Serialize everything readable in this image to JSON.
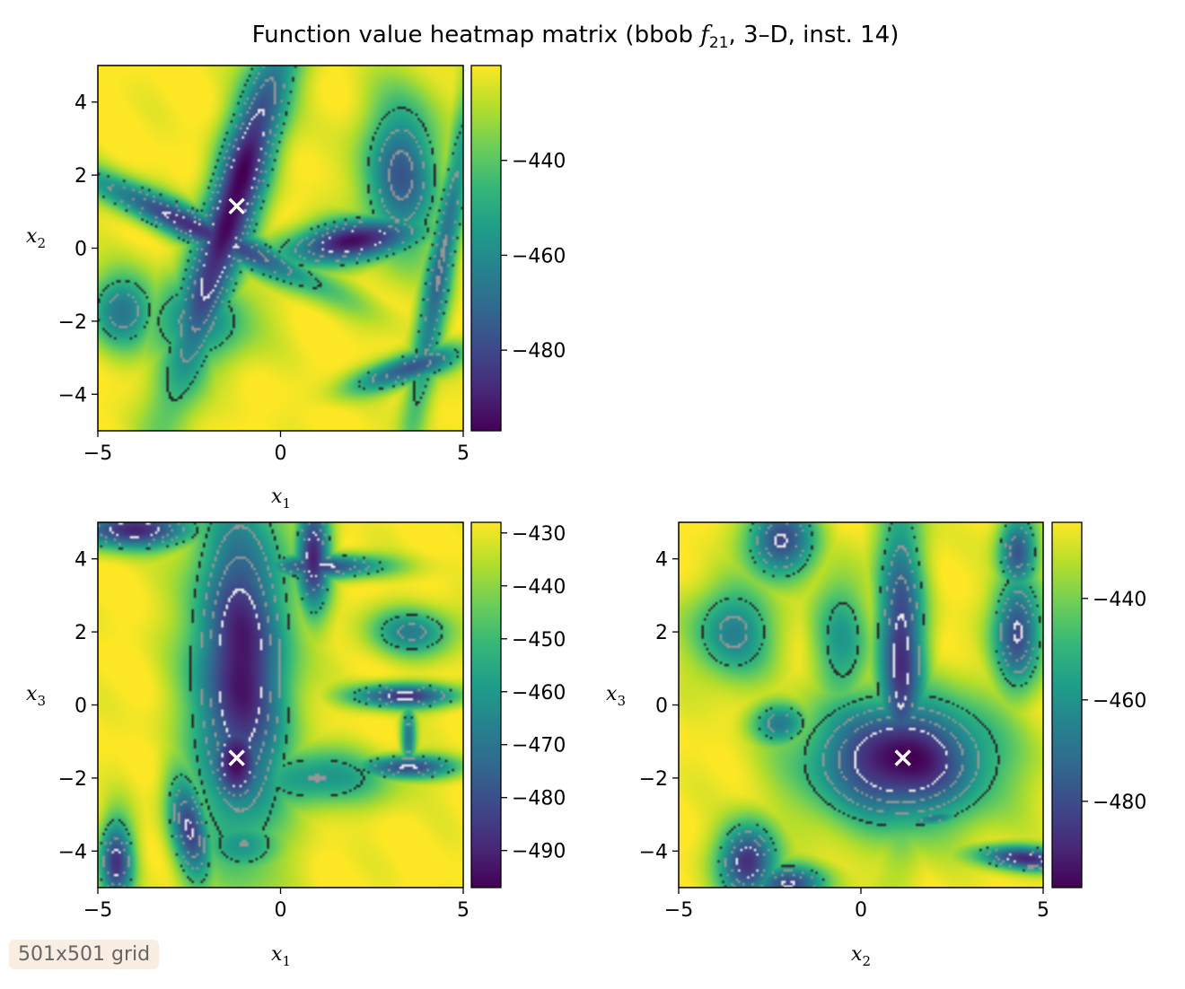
{
  "title": {
    "prefix": "Function value heatmap matrix (bbob ",
    "fname": "f",
    "fsub": "21",
    "suffix": ", 3–D, inst. 14)"
  },
  "badge": "501x501 grid",
  "colors": {
    "colormap": "viridis",
    "marker": "#ffffff",
    "contour_dark": "#222222",
    "contour_grey": "#909090",
    "contour_light": "#f2f2f2"
  },
  "chart_data": [
    {
      "type": "heatmap",
      "panel": "x1-x2",
      "xlabel": "x",
      "xsub": "1",
      "ylabel": "x",
      "ysub": "2",
      "xlim": [
        -5,
        5
      ],
      "ylim": [
        -5,
        5
      ],
      "xticks": [
        "−5",
        "0",
        "5"
      ],
      "xtick_values": [
        -5,
        0,
        5
      ],
      "yticks": [
        "−4",
        "−2",
        "0",
        "2",
        "4"
      ],
      "ytick_values": [
        -4,
        -2,
        0,
        2,
        4
      ],
      "colorbar": {
        "vmin": -497,
        "vmax": -420,
        "ticks": [
          "−440",
          "−460",
          "−480"
        ],
        "tick_values": [
          -440,
          -460,
          -480
        ]
      },
      "optimum_marker": {
        "x": -1.2,
        "y": 1.15
      },
      "basins": [
        {
          "cx": -1.3,
          "cy": 1.2,
          "rx": 0.55,
          "ry": 4.0,
          "angle_deg": -17,
          "depth": 1.0
        },
        {
          "cx": -2.2,
          "cy": 0.5,
          "rx": 0.35,
          "ry": 2.8,
          "angle_deg": 65,
          "depth": 0.85
        },
        {
          "cx": -2.9,
          "cy": 0.9,
          "rx": 0.45,
          "ry": 0.2,
          "angle_deg": 15,
          "depth": 0.55
        },
        {
          "cx": 2.0,
          "cy": 0.2,
          "rx": 1.5,
          "ry": 0.45,
          "angle_deg": 10,
          "depth": 0.95
        },
        {
          "cx": 3.3,
          "cy": 2.0,
          "rx": 0.8,
          "ry": 1.6,
          "angle_deg": 0,
          "depth": 0.7
        },
        {
          "cx": 4.4,
          "cy": -0.4,
          "rx": 0.3,
          "ry": 3.6,
          "angle_deg": -10,
          "depth": 0.65
        },
        {
          "cx": 3.5,
          "cy": -3.3,
          "rx": 1.2,
          "ry": 0.3,
          "angle_deg": 18,
          "depth": 0.75
        },
        {
          "cx": -4.3,
          "cy": -1.7,
          "rx": 0.7,
          "ry": 0.8,
          "angle_deg": 0,
          "depth": 0.6
        },
        {
          "cx": -2.3,
          "cy": -2.0,
          "rx": 1.1,
          "ry": 0.9,
          "angle_deg": 0,
          "depth": 0.55
        }
      ]
    },
    {
      "type": "heatmap",
      "panel": "x1-x3",
      "xlabel": "x",
      "xsub": "1",
      "ylabel": "x",
      "ysub": "3",
      "xlim": [
        -5,
        5
      ],
      "ylim": [
        -5,
        5
      ],
      "xticks": [
        "−5",
        "0",
        "5"
      ],
      "xtick_values": [
        -5,
        0,
        5
      ],
      "yticks": [
        "−4",
        "−2",
        "0",
        "2",
        "4"
      ],
      "ytick_values": [
        -4,
        -2,
        0,
        2,
        4
      ],
      "colorbar": {
        "vmin": -497,
        "vmax": -428,
        "ticks": [
          "−430",
          "−440",
          "−450",
          "−460",
          "−470",
          "−480",
          "−490"
        ],
        "tick_values": [
          -430,
          -440,
          -450,
          -460,
          -470,
          -480,
          -490
        ]
      },
      "optimum_marker": {
        "x": -1.2,
        "y": -1.45
      },
      "basins": [
        {
          "cx": -1.1,
          "cy": 1.0,
          "rx": 1.0,
          "ry": 3.6,
          "angle_deg": 0,
          "depth": 0.95
        },
        {
          "cx": -1.2,
          "cy": -1.5,
          "rx": 0.6,
          "ry": 1.1,
          "angle_deg": 0,
          "depth": 1.0
        },
        {
          "cx": 0.9,
          "cy": 4.1,
          "rx": 0.35,
          "ry": 1.2,
          "angle_deg": 0,
          "depth": 0.9
        },
        {
          "cx": 1.2,
          "cy": 3.8,
          "rx": 1.3,
          "ry": 0.25,
          "angle_deg": 0,
          "depth": 0.8
        },
        {
          "cx": -4.0,
          "cy": 4.8,
          "rx": 1.3,
          "ry": 0.4,
          "angle_deg": 0,
          "depth": 0.9
        },
        {
          "cx": 3.4,
          "cy": 0.25,
          "rx": 1.1,
          "ry": 0.25,
          "angle_deg": 0,
          "depth": 0.85
        },
        {
          "cx": 3.5,
          "cy": -1.7,
          "rx": 1.0,
          "ry": 0.25,
          "angle_deg": 0,
          "depth": 0.8
        },
        {
          "cx": 3.5,
          "cy": -0.9,
          "rx": 0.15,
          "ry": 0.7,
          "angle_deg": 0,
          "depth": 0.6
        },
        {
          "cx": 3.6,
          "cy": 2.0,
          "rx": 0.9,
          "ry": 0.5,
          "angle_deg": 0,
          "depth": 0.55
        },
        {
          "cx": -2.5,
          "cy": -3.4,
          "rx": 0.4,
          "ry": 1.2,
          "angle_deg": 10,
          "depth": 0.8
        },
        {
          "cx": -4.5,
          "cy": -4.3,
          "rx": 0.35,
          "ry": 0.9,
          "angle_deg": 0,
          "depth": 0.85
        },
        {
          "cx": 1.0,
          "cy": -2.0,
          "rx": 1.5,
          "ry": 0.6,
          "angle_deg": 0,
          "depth": 0.5
        },
        {
          "cx": -1.0,
          "cy": -3.8,
          "rx": 0.8,
          "ry": 0.6,
          "angle_deg": 0,
          "depth": 0.5
        }
      ]
    },
    {
      "type": "heatmap",
      "panel": "x2-x3",
      "xlabel": "x",
      "xsub": "2",
      "ylabel": "x",
      "ysub": "3",
      "xlim": [
        -5,
        5
      ],
      "ylim": [
        -5,
        5
      ],
      "xticks": [
        "−5",
        "0",
        "5"
      ],
      "xtick_values": [
        -5,
        0,
        5
      ],
      "yticks": [
        "−4",
        "−2",
        "0",
        "2",
        "4"
      ],
      "ytick_values": [
        -4,
        -2,
        0,
        2,
        4
      ],
      "colorbar": {
        "vmin": -497,
        "vmax": -425,
        "ticks": [
          "−440",
          "−460",
          "−480"
        ],
        "tick_values": [
          -440,
          -460,
          -480
        ]
      },
      "optimum_marker": {
        "x": 1.15,
        "y": -1.45
      },
      "basins": [
        {
          "cx": 1.1,
          "cy": -1.5,
          "rx": 1.9,
          "ry": 1.3,
          "angle_deg": 0,
          "depth": 1.0
        },
        {
          "cx": 1.1,
          "cy": 1.2,
          "rx": 0.5,
          "ry": 3.2,
          "angle_deg": 0,
          "depth": 0.85
        },
        {
          "cx": 4.3,
          "cy": 2.0,
          "rx": 0.5,
          "ry": 1.2,
          "angle_deg": 0,
          "depth": 0.8
        },
        {
          "cx": 4.3,
          "cy": 4.2,
          "rx": 0.4,
          "ry": 0.8,
          "angle_deg": 0,
          "depth": 0.75
        },
        {
          "cx": -2.2,
          "cy": 4.5,
          "rx": 0.7,
          "ry": 0.8,
          "angle_deg": 0,
          "depth": 0.8
        },
        {
          "cx": -3.1,
          "cy": -4.3,
          "rx": 0.6,
          "ry": 0.8,
          "angle_deg": 0,
          "depth": 0.9
        },
        {
          "cx": -2.0,
          "cy": -4.9,
          "rx": 0.8,
          "ry": 0.4,
          "angle_deg": 0,
          "depth": 0.8
        },
        {
          "cx": 4.5,
          "cy": -4.2,
          "rx": 1.0,
          "ry": 0.25,
          "angle_deg": -5,
          "depth": 0.9
        },
        {
          "cx": -3.5,
          "cy": 2.0,
          "rx": 0.9,
          "ry": 1.0,
          "angle_deg": 0,
          "depth": 0.55
        },
        {
          "cx": -2.2,
          "cy": -0.5,
          "rx": 0.6,
          "ry": 0.45,
          "angle_deg": 0,
          "depth": 0.6
        },
        {
          "cx": 2.0,
          "cy": -3.1,
          "rx": 0.6,
          "ry": 0.15,
          "angle_deg": 8,
          "depth": 0.6
        },
        {
          "cx": -0.5,
          "cy": 1.8,
          "rx": 0.6,
          "ry": 1.4,
          "angle_deg": 0,
          "depth": 0.45
        }
      ]
    }
  ]
}
